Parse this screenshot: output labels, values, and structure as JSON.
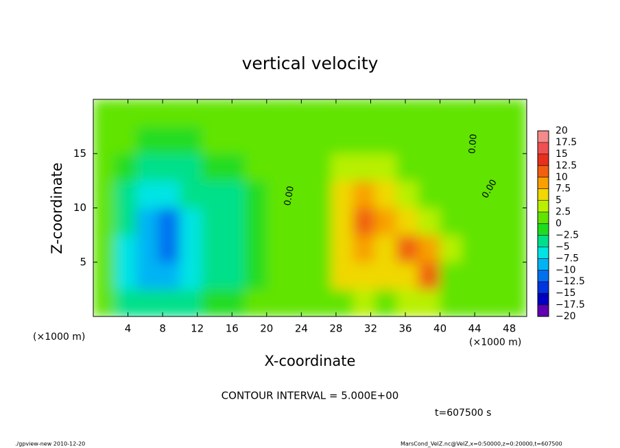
{
  "chart_data": {
    "type": "heatmap",
    "title": "vertical velocity",
    "xlabel": "X-coordinate",
    "ylabel": "Z-coordinate",
    "x_unit": "(×1000 m)",
    "y_unit": "(×1000 m)",
    "contour_interval": "CONTOUR INTERVAL = 5.000E+00",
    "time": "t=607500 s",
    "footer_left": "./gpview-new  2010-12-20",
    "footer_right": "MarsCond_VelZ.nc@VelZ,x=0:50000,z=0:20000,t=607500",
    "contour_labels": [
      "0.00",
      "0.00",
      "0.00"
    ],
    "xlim": [
      0,
      50
    ],
    "ylim": [
      0,
      20
    ],
    "xticks": [
      4,
      8,
      12,
      16,
      20,
      24,
      28,
      32,
      36,
      40,
      44,
      48
    ],
    "yticks": [
      5,
      10,
      15
    ],
    "x": [
      1.25,
      3.75,
      6.25,
      8.75,
      11.25,
      13.75,
      16.25,
      18.75,
      21.25,
      23.75,
      26.25,
      28.75,
      31.25,
      33.75,
      36.25,
      38.75,
      41.25,
      43.75,
      46.25,
      48.75
    ],
    "y": [
      1.25,
      3.75,
      6.25,
      8.75,
      11.25,
      13.75,
      16.25,
      18.75
    ],
    "z": [
      [
        1,
        -3,
        -4,
        -4,
        -3,
        -2,
        -1,
        1,
        1,
        1,
        1,
        2,
        3,
        2,
        4,
        3,
        1,
        1,
        1,
        1
      ],
      [
        1,
        -6,
        -9,
        -10,
        -6,
        -4,
        -3,
        -1,
        1,
        1,
        1,
        5,
        6,
        5,
        7,
        11,
        2,
        1,
        1,
        1
      ],
      [
        1,
        -7,
        -10,
        -11,
        -7,
        -5,
        -4,
        -1,
        1,
        1,
        1,
        5,
        8,
        6,
        11,
        8,
        3,
        1,
        1,
        1
      ],
      [
        1,
        -5,
        -9,
        -11,
        -6,
        -4,
        -3,
        -1,
        1,
        1,
        2,
        6,
        12,
        8,
        6,
        4,
        2,
        1,
        1,
        1
      ],
      [
        1,
        -3,
        -6,
        -6,
        -5,
        -4,
        -3,
        -1,
        1,
        1,
        1,
        5,
        9,
        7,
        4,
        2,
        1,
        1,
        1,
        1
      ],
      [
        1,
        -2,
        -4,
        -4,
        -3,
        -2,
        -2,
        1,
        1,
        1,
        1,
        3,
        4,
        3,
        2,
        1,
        1,
        1,
        1,
        1
      ],
      [
        1,
        1,
        -1,
        -1,
        -1,
        1,
        1,
        1,
        1,
        1,
        1,
        1,
        1,
        1,
        1,
        1,
        1,
        1,
        1,
        1
      ],
      [
        1,
        1,
        1,
        1,
        1,
        1,
        1,
        1,
        1,
        1,
        1,
        1,
        1,
        1,
        1,
        1,
        1,
        1,
        1,
        1
      ]
    ],
    "levels": [
      20,
      17.5,
      15,
      12.5,
      10,
      7.5,
      5,
      2.5,
      0,
      {
        "value": -2.5,
        "label": "−2.5"
      },
      {
        "value": -5,
        "label": "−5"
      },
      {
        "value": -7.5,
        "label": "−7.5"
      },
      {
        "value": -10,
        "label": "−10"
      },
      {
        "value": -12.5,
        "label": "−12.5"
      },
      {
        "value": -15,
        "label": "−15"
      },
      {
        "value": -17.5,
        "label": "−17.5"
      },
      {
        "value": -20,
        "label": "−20"
      }
    ],
    "colors": [
      "#f48a8a",
      "#f05050",
      "#e8301c",
      "#f06010",
      "#f8a000",
      "#f0d800",
      "#b8f000",
      "#60e400",
      "#20dc20",
      "#00e08a",
      "#00e4e4",
      "#00b4f4",
      "#0070f0",
      "#0034e0",
      "#0000c0",
      "#6000b0"
    ]
  }
}
